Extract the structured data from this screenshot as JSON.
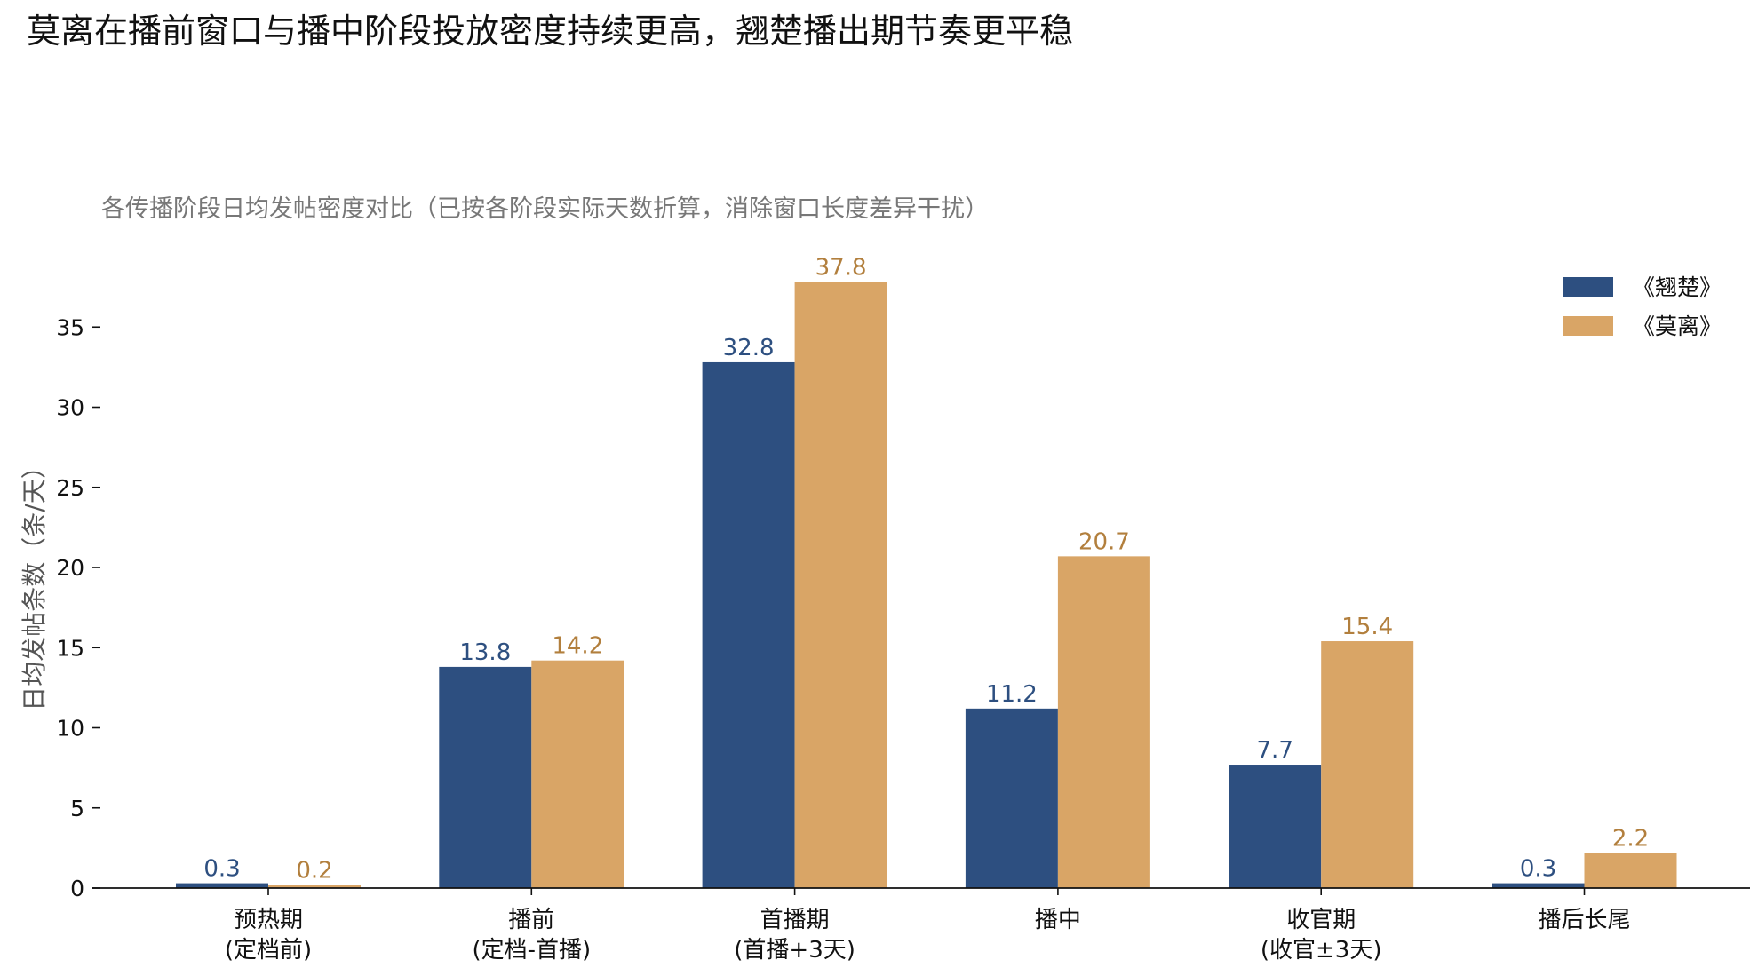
{
  "chart_data": {
    "type": "bar",
    "title": "莫离在播前窗口与播中阶段投放密度持续更高，翘楚播出期节奏更平稳",
    "subtitle": "各传播阶段日均发帖密度对比（已按各阶段实际天数折算，消除窗口长度差异干扰）",
    "xlabel": "",
    "ylabel": "日均发帖条数（条/天）",
    "ylim": [
      0,
      39
    ],
    "yticks": [
      0,
      5,
      10,
      15,
      20,
      25,
      30,
      35
    ],
    "grid": false,
    "legend_position": "top-right",
    "categories": [
      [
        "预热期",
        "(定档前)"
      ],
      [
        "播前",
        "(定档-首播)"
      ],
      [
        "首播期",
        "(首播+3天)"
      ],
      [
        "播中"
      ],
      [
        "收官期",
        "(收官±3天)"
      ],
      [
        "播后长尾"
      ]
    ],
    "series": [
      {
        "name": "《翘楚》",
        "color": "#2d4f80",
        "label_color": "#2d4f80",
        "values": [
          0.3,
          13.8,
          32.8,
          11.2,
          7.7,
          0.3
        ],
        "labels": [
          "0.3",
          "13.8",
          "32.8",
          "11.2",
          "7.7",
          "0.3"
        ]
      },
      {
        "name": "《莫离》",
        "color": "#d9a566",
        "label_color": "#b27f3d",
        "values": [
          0.2,
          14.2,
          37.8,
          20.7,
          15.4,
          2.2
        ],
        "labels": [
          "0.2",
          "14.2",
          "37.8",
          "20.7",
          "15.4",
          "2.2"
        ]
      }
    ]
  }
}
